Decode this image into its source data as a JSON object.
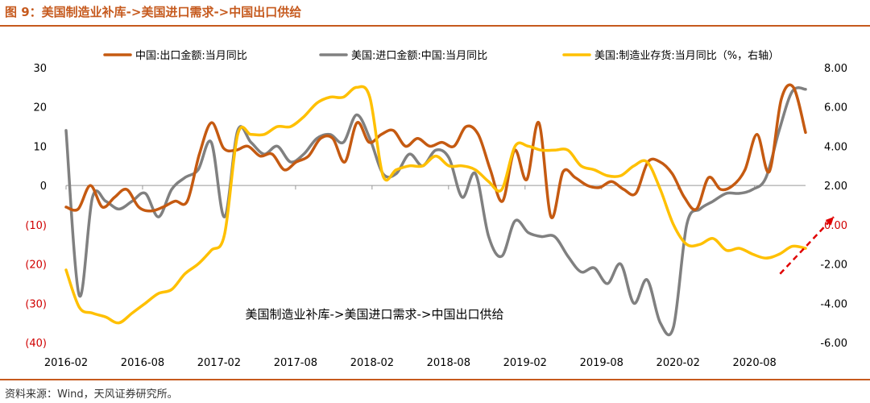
{
  "header": {
    "title": "图 9：美国制造业补库->美国进口需求->中国出口供给"
  },
  "footer": {
    "source": "资料来源：Wind，天风证券研究所。"
  },
  "chart_data": {
    "type": "line",
    "title": "图 9：美国制造业补库->美国进口需求->中国出口供给",
    "annotation": "美国制造业补库->美国进口需求->中国出口供给",
    "legend_position": "top",
    "grid": false,
    "x": {
      "start": "2016-02",
      "end": "2020-12",
      "tick_labels": [
        "2016-02",
        "2016-08",
        "2017-02",
        "2017-08",
        "2018-02",
        "2018-08",
        "2019-02",
        "2019-08",
        "2020-02",
        "2020-08"
      ]
    },
    "y_left": {
      "range": [
        -40,
        30
      ],
      "ticks": [
        {
          "value": 30,
          "label": "30",
          "color": "#000000"
        },
        {
          "value": 20,
          "label": "20",
          "color": "#000000"
        },
        {
          "value": 10,
          "label": "10",
          "color": "#000000"
        },
        {
          "value": 0,
          "label": "0",
          "color": "#000000"
        },
        {
          "value": -10,
          "label": "(10)",
          "color": "#d00000"
        },
        {
          "value": -20,
          "label": "(20)",
          "color": "#d00000"
        },
        {
          "value": -30,
          "label": "(30)",
          "color": "#d00000"
        },
        {
          "value": -40,
          "label": "(40)",
          "color": "#d00000"
        }
      ]
    },
    "y_right": {
      "range": [
        -6,
        8
      ],
      "ticks": [
        {
          "value": 8,
          "label": "8.00",
          "color": "#000000"
        },
        {
          "value": 6,
          "label": "6.00",
          "color": "#000000"
        },
        {
          "value": 4,
          "label": "4.00",
          "color": "#000000"
        },
        {
          "value": 2,
          "label": "2.00",
          "color": "#000000"
        },
        {
          "value": 0,
          "label": "0.00",
          "color": "#d00000"
        },
        {
          "value": -2,
          "label": "-2.00",
          "color": "#000000"
        },
        {
          "value": -4,
          "label": "-4.00",
          "color": "#000000"
        },
        {
          "value": -6,
          "label": "-6.00",
          "color": "#000000"
        }
      ]
    },
    "trend_arrow": {
      "from": [
        "2020-10",
        -2.5
      ],
      "to": [
        "2020-12",
        0.4
      ],
      "color": "#e00000"
    },
    "series": [
      {
        "name": "中国:出口金额:当月同比",
        "axis": "left",
        "color": "#c55a11",
        "values": [
          -5.5,
          -6,
          0,
          -5.5,
          -3,
          -1,
          -5.5,
          -6.5,
          -5.5,
          -4,
          -4,
          8,
          16,
          9.5,
          9,
          10,
          7.5,
          8,
          4,
          6,
          7.5,
          12,
          12,
          6,
          16,
          11,
          13,
          14,
          10,
          12,
          10,
          11,
          10,
          15,
          13,
          4,
          -4,
          9,
          1.5,
          16,
          -8,
          3.5,
          2,
          0,
          -0.5,
          1,
          -1,
          -2,
          6,
          6,
          3,
          -3,
          -6,
          2,
          -1,
          0,
          4,
          13,
          3.5,
          22,
          25,
          13.5
        ]
      },
      {
        "name": "美国:进口金额:中国:当月同比",
        "axis": "left",
        "color": "#808080",
        "values": [
          14,
          -28,
          -3,
          -4,
          -6,
          -4,
          -2,
          -8,
          -1,
          2,
          4,
          11,
          -8,
          14,
          11,
          8,
          10,
          6,
          8,
          12,
          13,
          11,
          18,
          12,
          3,
          3,
          8,
          5,
          9,
          7,
          -3,
          3,
          -13,
          -18,
          -9,
          -12,
          -13,
          -13,
          -18,
          -22,
          -21,
          -25,
          -20,
          -30,
          -24,
          -35,
          -36,
          -10,
          -6,
          -4,
          -2,
          -2,
          -1,
          2,
          14,
          24,
          24.5
        ]
      },
      {
        "name": "美国:制造业存货:当月同比（%，右轴）",
        "axis": "right",
        "color": "#ffc000",
        "values": [
          -2.3,
          -4.2,
          -4.5,
          -4.7,
          -5,
          -4.5,
          -4,
          -3.5,
          -3.3,
          -2.5,
          -2,
          -1.3,
          -0.5,
          4.6,
          4.6,
          4.6,
          5,
          5,
          5.5,
          6.2,
          6.5,
          6.5,
          7,
          6.5,
          2.5,
          2.8,
          3,
          3,
          3.5,
          3,
          3,
          2.8,
          2.2,
          1.8,
          4,
          4,
          3.8,
          3.8,
          3.8,
          3,
          2.8,
          2.5,
          2.5,
          3,
          3.2,
          1.8,
          0,
          -1,
          -1,
          -0.7,
          -1.3,
          -1.2,
          -1.5,
          -1.7,
          -1.5,
          -1.1,
          -1.2
        ]
      }
    ]
  }
}
